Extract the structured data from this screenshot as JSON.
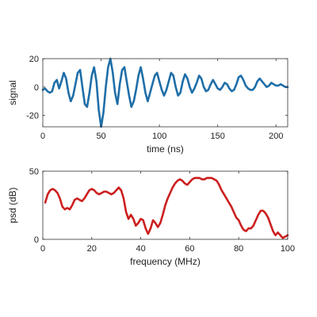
{
  "chart_data": [
    {
      "type": "line",
      "xlabel": "time (ns)",
      "ylabel": "signal",
      "xlim": [
        0,
        210
      ],
      "ylim": [
        -28,
        20
      ],
      "xticks": [
        0,
        50,
        100,
        150,
        200
      ],
      "yticks": [
        -20,
        0,
        20
      ],
      "xtick_labels": [
        "0",
        "50",
        "100",
        "150",
        "200"
      ],
      "ytick_labels": [
        "-20",
        "0",
        "20"
      ],
      "grid": false,
      "series": [
        {
          "color": "#1f6ea8",
          "x": [
            0,
            2,
            4,
            6,
            8,
            10,
            12,
            14,
            16,
            18,
            20,
            22,
            24,
            26,
            28,
            30,
            32,
            34,
            36,
            38,
            40,
            42,
            44,
            46,
            48,
            50,
            52,
            54,
            56,
            58,
            60,
            62,
            64,
            66,
            68,
            70,
            72,
            74,
            76,
            78,
            80,
            82,
            84,
            86,
            88,
            90,
            92,
            94,
            96,
            98,
            100,
            102,
            104,
            106,
            108,
            110,
            112,
            114,
            116,
            118,
            120,
            122,
            124,
            126,
            128,
            130,
            132,
            134,
            136,
            138,
            140,
            142,
            144,
            146,
            148,
            150,
            152,
            154,
            156,
            158,
            160,
            162,
            164,
            166,
            168,
            170,
            172,
            174,
            176,
            178,
            180,
            182,
            184,
            186,
            188,
            190,
            192,
            194,
            196,
            198,
            200,
            202,
            204,
            206,
            208,
            210
          ],
          "y": [
            -2,
            -1,
            -3,
            -4,
            -3,
            3,
            5,
            -1,
            4,
            10,
            6,
            -4,
            -10,
            -6,
            2,
            10,
            12,
            0,
            -12,
            -14,
            -4,
            8,
            14,
            4,
            -16,
            -28,
            -18,
            0,
            14,
            20,
            10,
            -4,
            -12,
            2,
            12,
            14,
            4,
            -6,
            -14,
            -10,
            -2,
            8,
            14,
            6,
            -4,
            -10,
            -4,
            2,
            8,
            10,
            4,
            -2,
            -6,
            -2,
            4,
            10,
            8,
            0,
            -6,
            -4,
            4,
            9,
            6,
            0,
            -4,
            -1,
            3,
            8,
            6,
            0,
            -3,
            -2,
            2,
            5,
            2,
            -1,
            -2,
            0,
            3,
            2,
            -1,
            -3,
            -2,
            2,
            7,
            8,
            5,
            1,
            -1,
            -2,
            -2,
            0,
            4,
            6,
            4,
            2,
            0,
            1,
            3,
            2,
            1,
            1,
            2,
            1,
            0,
            0
          ]
        }
      ]
    },
    {
      "type": "line",
      "xlabel": "frequency (MHz)",
      "ylabel": "psd (dB)",
      "xlim": [
        0,
        100
      ],
      "ylim": [
        0,
        50
      ],
      "xticks": [
        0,
        20,
        40,
        60,
        80,
        100
      ],
      "yticks": [
        0,
        50
      ],
      "xtick_labels": [
        "0",
        "20",
        "40",
        "60",
        "80",
        "100"
      ],
      "ytick_labels": [
        "0",
        "50"
      ],
      "grid": false,
      "series": [
        {
          "color": "#cc1f1f",
          "x": [
            1,
            2,
            3,
            4,
            5,
            6,
            7,
            8,
            9,
            10,
            11,
            12,
            13,
            14,
            15,
            16,
            17,
            18,
            19,
            20,
            21,
            22,
            23,
            24,
            25,
            26,
            27,
            28,
            29,
            30,
            31,
            32,
            33,
            34,
            35,
            36,
            37,
            38,
            39,
            40,
            41,
            42,
            43,
            44,
            45,
            46,
            47,
            48,
            49,
            50,
            51,
            52,
            53,
            54,
            55,
            56,
            57,
            58,
            59,
            60,
            61,
            62,
            63,
            64,
            65,
            66,
            67,
            68,
            69,
            70,
            71,
            72,
            73,
            74,
            75,
            76,
            77,
            78,
            79,
            80,
            81,
            82,
            83,
            84,
            85,
            86,
            87,
            88,
            89,
            90,
            91,
            92,
            93,
            94,
            95,
            96,
            97,
            98,
            99,
            100
          ],
          "y": [
            27,
            33,
            36,
            37,
            36,
            34,
            30,
            24,
            22,
            23,
            22,
            25,
            29,
            30,
            29,
            28,
            30,
            33,
            36,
            37,
            36,
            34,
            33,
            34,
            35,
            35,
            34,
            33,
            34,
            36,
            38,
            36,
            30,
            20,
            15,
            18,
            15,
            10,
            12,
            15,
            14,
            8,
            4,
            8,
            14,
            12,
            9,
            12,
            18,
            25,
            30,
            34,
            38,
            41,
            43,
            44,
            43,
            41,
            40,
            42,
            44,
            45,
            45,
            45,
            44,
            44,
            45,
            45,
            45,
            44,
            43,
            40,
            36,
            33,
            30,
            27,
            24,
            20,
            16,
            14,
            10,
            7,
            6,
            8,
            8,
            10,
            14,
            18,
            21,
            21,
            19,
            16,
            11,
            6,
            3,
            5,
            3,
            1,
            2,
            3
          ]
        }
      ]
    }
  ]
}
